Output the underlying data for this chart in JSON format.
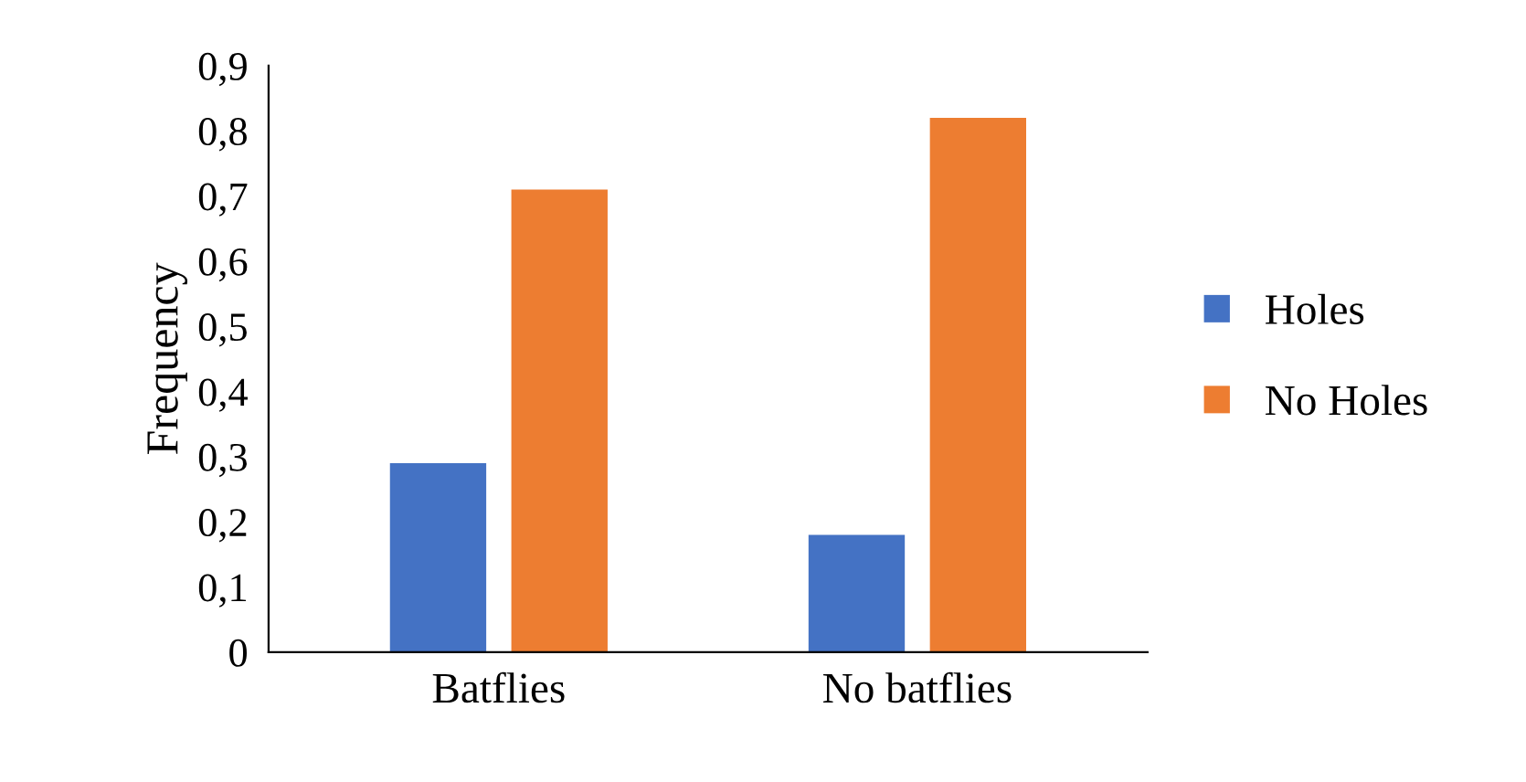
{
  "chart_data": {
    "type": "bar",
    "ylabel": "Frequency",
    "categories": [
      "Batflies",
      "No batflies"
    ],
    "series": [
      {
        "name": "Holes",
        "color": "#4472c4",
        "values": [
          0.29,
          0.18
        ]
      },
      {
        "name": "No Holes",
        "color": "#ed7d31",
        "values": [
          0.71,
          0.82
        ]
      }
    ],
    "ylim": [
      0,
      0.9
    ],
    "yticks": [
      0,
      {
        "value": 0.1,
        "label": "0,1"
      },
      {
        "value": 0.2,
        "label": "0,2"
      },
      {
        "value": 0.3,
        "label": "0,3"
      },
      {
        "value": 0.4,
        "label": "0,4"
      },
      {
        "value": 0.5,
        "label": "0,5"
      },
      {
        "value": 0.6,
        "label": "0,6"
      },
      {
        "value": 0.7,
        "label": "0,7"
      },
      {
        "value": 0.8,
        "label": "0,8"
      },
      {
        "value": 0.9,
        "label": "0,9"
      }
    ],
    "grid": false,
    "legend": "right"
  }
}
